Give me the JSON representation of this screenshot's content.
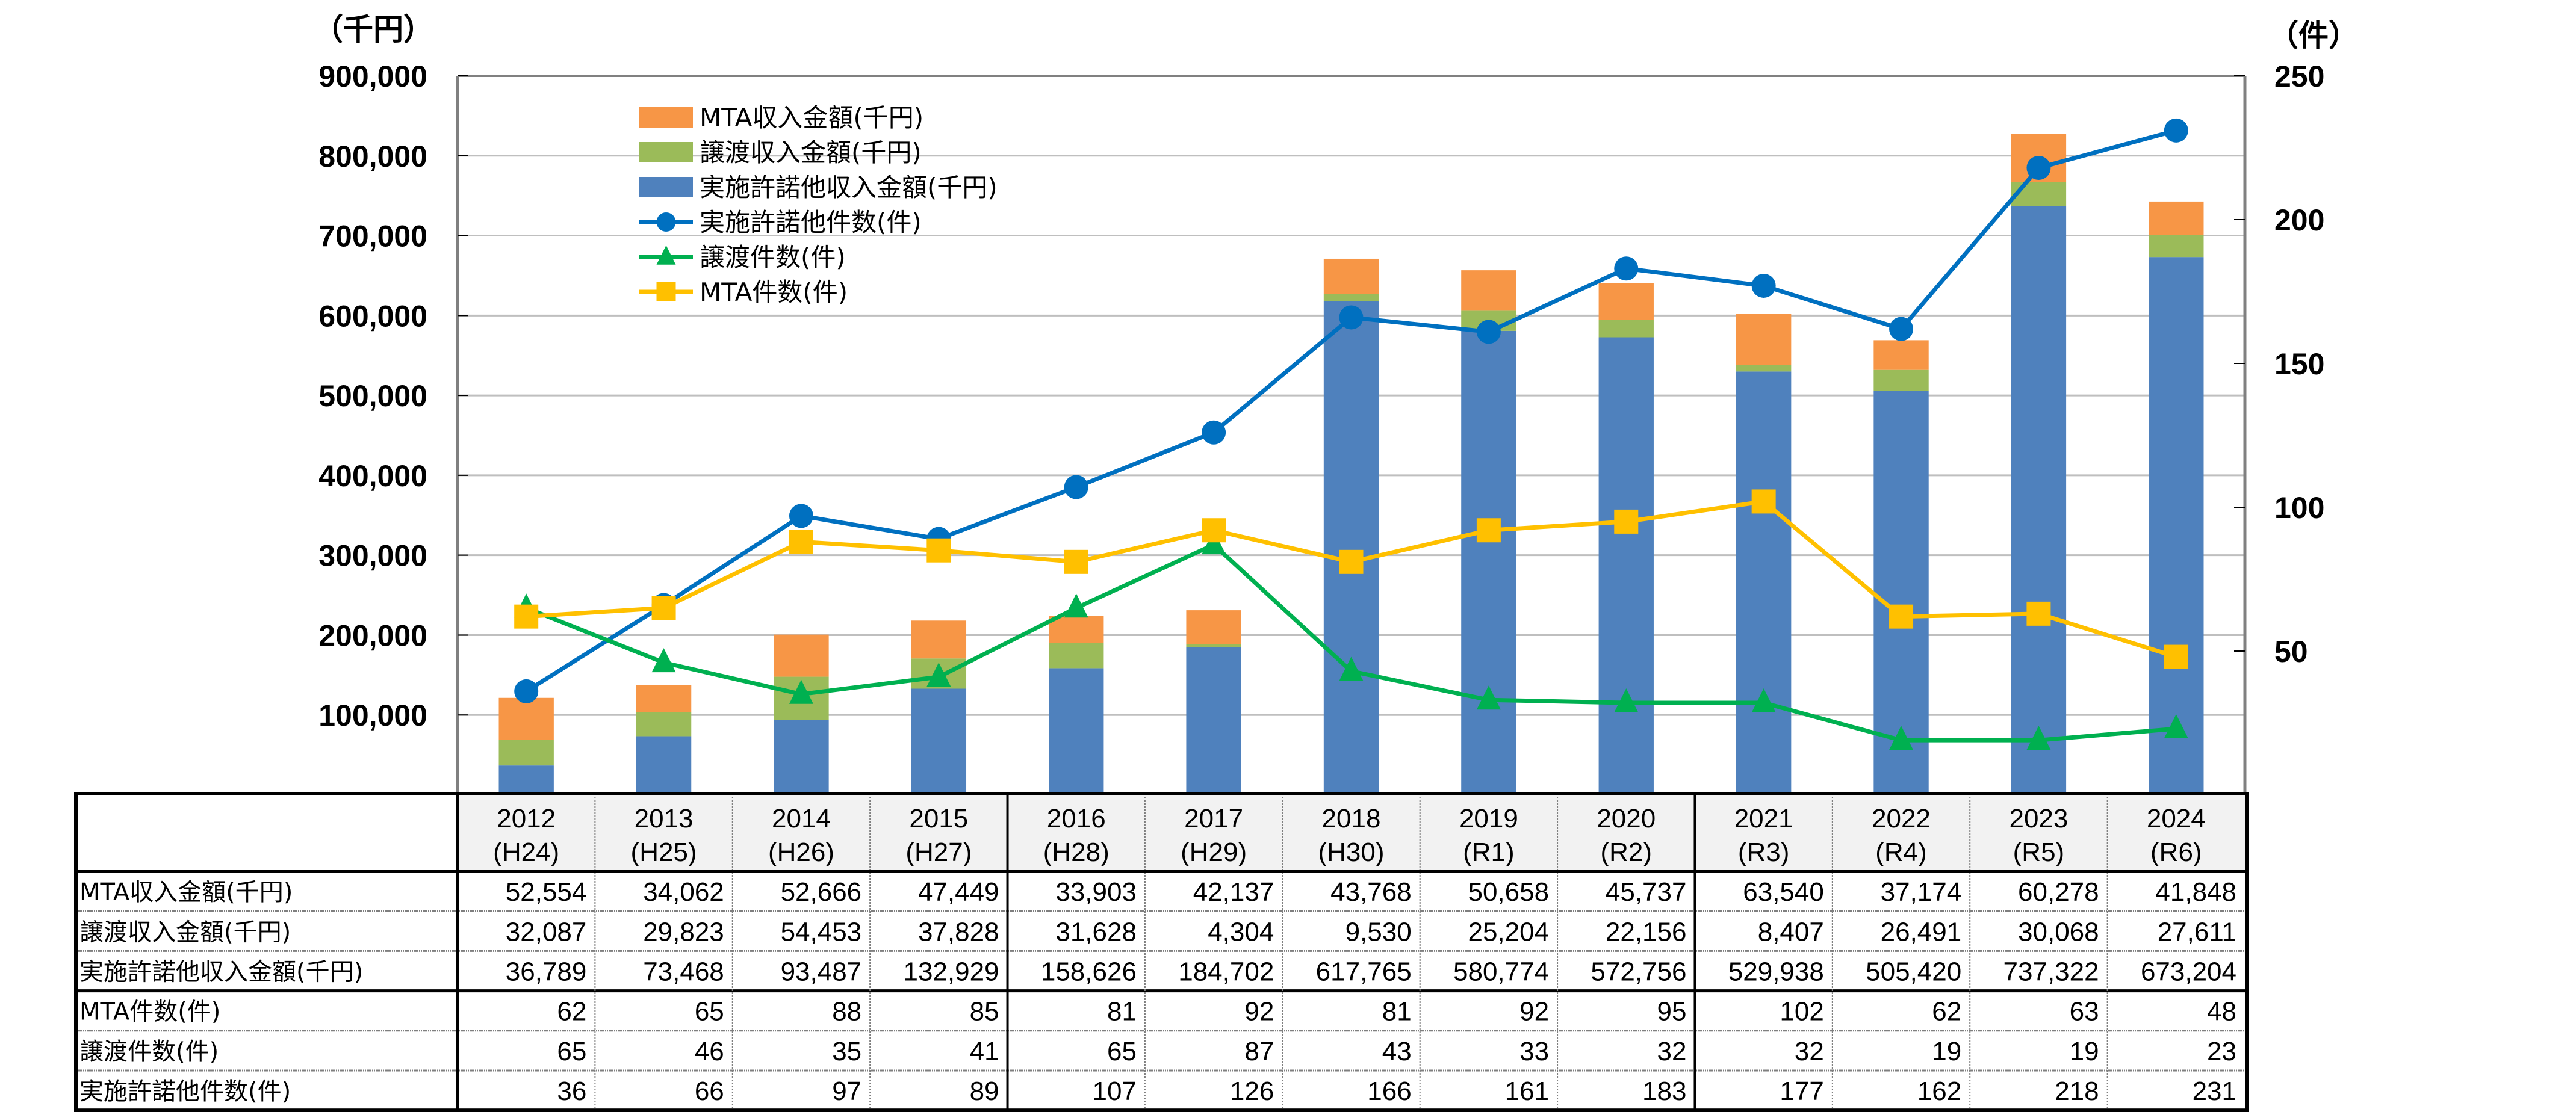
{
  "chart_data": {
    "type": "bar",
    "subtype": "stacked-bar-with-lines",
    "title": "",
    "categories": [
      "2012",
      "2013",
      "2014",
      "2015",
      "2016",
      "2017",
      "2018",
      "2019",
      "2020",
      "2021",
      "2022",
      "2023",
      "2024"
    ],
    "category_sublabels": [
      "(H24)",
      "(H25)",
      "(H26)",
      "(H27)",
      "(H28)",
      "(H29)",
      "(H30)",
      "(R1)",
      "(R2)",
      "(R3)",
      "(R4)",
      "(R5)",
      "(R6)"
    ],
    "left_axis": {
      "unit_label": "（千円）",
      "ylim": [
        0,
        900000
      ],
      "ticks": [
        100000,
        200000,
        300000,
        400000,
        500000,
        600000,
        700000,
        800000,
        900000
      ],
      "tick_labels": [
        "100,000",
        "200,000",
        "300,000",
        "400,000",
        "500,000",
        "600,000",
        "700,000",
        "800,000",
        "900,000"
      ]
    },
    "right_axis": {
      "unit_label": "（件）",
      "ylim": [
        0,
        250
      ],
      "ticks": [
        50,
        100,
        150,
        200,
        250
      ],
      "tick_labels": [
        "50",
        "100",
        "150",
        "200",
        "250"
      ]
    },
    "grid": true,
    "legend_position": "top-left",
    "bar_series": [
      {
        "name": "実施許諾他収入金額(千円)",
        "color": "#4f81bd",
        "axis": "left",
        "values": [
          36789,
          73468,
          93487,
          132929,
          158626,
          184702,
          617765,
          580774,
          572756,
          529938,
          505420,
          737322,
          673204
        ]
      },
      {
        "name": "譲渡収入金額(千円)",
        "color": "#9bbb59",
        "axis": "left",
        "values": [
          32087,
          29823,
          54453,
          37828,
          31628,
          4304,
          9530,
          25204,
          22156,
          8407,
          26491,
          30068,
          27611
        ]
      },
      {
        "name": "MTA収入金額(千円)",
        "color": "#f79646",
        "axis": "left",
        "values": [
          52554,
          34062,
          52666,
          47449,
          33903,
          42137,
          43768,
          50658,
          45737,
          63540,
          37174,
          60278,
          41848
        ]
      }
    ],
    "line_series": [
      {
        "name": "実施許諾他件数(件)",
        "color": "#0070c0",
        "marker": "circle",
        "axis": "right",
        "values": [
          36,
          66,
          97,
          89,
          107,
          126,
          166,
          161,
          183,
          177,
          162,
          218,
          231
        ]
      },
      {
        "name": "譲渡件数(件)",
        "color": "#00b050",
        "marker": "triangle",
        "axis": "right",
        "values": [
          65,
          46,
          35,
          41,
          65,
          87,
          43,
          33,
          32,
          32,
          19,
          19,
          23
        ]
      },
      {
        "name": "MTA件数(件)",
        "color": "#ffc000",
        "marker": "square",
        "axis": "right",
        "values": [
          62,
          65,
          88,
          85,
          81,
          92,
          81,
          92,
          95,
          102,
          62,
          63,
          48
        ]
      }
    ],
    "legend": [
      {
        "label": "MTA収入金額(千円)",
        "kind": "bar",
        "color": "#f79646"
      },
      {
        "label": "譲渡収入金額(千円)",
        "kind": "bar",
        "color": "#9bbb59"
      },
      {
        "label": "実施許諾他収入金額(千円)",
        "kind": "bar",
        "color": "#4f81bd"
      },
      {
        "label": "実施許諾他件数(件)",
        "kind": "line",
        "marker": "circle",
        "color": "#0070c0"
      },
      {
        "label": "譲渡件数(件)",
        "kind": "line",
        "marker": "triangle",
        "color": "#00b050"
      },
      {
        "label": "MTA件数(件)",
        "kind": "line",
        "marker": "square",
        "color": "#ffc000"
      }
    ],
    "data_table": {
      "rows": [
        {
          "label": "MTA収入金額(千円)",
          "cells": [
            "52,554",
            "34,062",
            "52,666",
            "47,449",
            "33,903",
            "42,137",
            "43,768",
            "50,658",
            "45,737",
            "63,540",
            "37,174",
            "60,278",
            "41,848"
          ]
        },
        {
          "label": "譲渡収入金額(千円)",
          "cells": [
            "32,087",
            "29,823",
            "54,453",
            "37,828",
            "31,628",
            "4,304",
            "9,530",
            "25,204",
            "22,156",
            "8,407",
            "26,491",
            "30,068",
            "27,611"
          ]
        },
        {
          "label": "実施許諾他収入金額(千円)",
          "cells": [
            "36,789",
            "73,468",
            "93,487",
            "132,929",
            "158,626",
            "184,702",
            "617,765",
            "580,774",
            "572,756",
            "529,938",
            "505,420",
            "737,322",
            "673,204"
          ]
        },
        {
          "label": "MTA件数(件)",
          "cells": [
            "62",
            "65",
            "88",
            "85",
            "81",
            "92",
            "81",
            "92",
            "95",
            "102",
            "62",
            "63",
            "48"
          ]
        },
        {
          "label": "譲渡件数(件)",
          "cells": [
            "65",
            "46",
            "35",
            "41",
            "65",
            "87",
            "43",
            "33",
            "32",
            "32",
            "19",
            "19",
            "23"
          ]
        },
        {
          "label": "実施許諾他件数(件)",
          "cells": [
            "36",
            "66",
            "97",
            "89",
            "107",
            "126",
            "166",
            "161",
            "183",
            "177",
            "162",
            "218",
            "231"
          ]
        }
      ]
    }
  },
  "colors": {
    "gridline": "#bfbfbf",
    "axis": "#808080",
    "table_border": "#000000",
    "table_header_bg": "#f2f2f2"
  }
}
